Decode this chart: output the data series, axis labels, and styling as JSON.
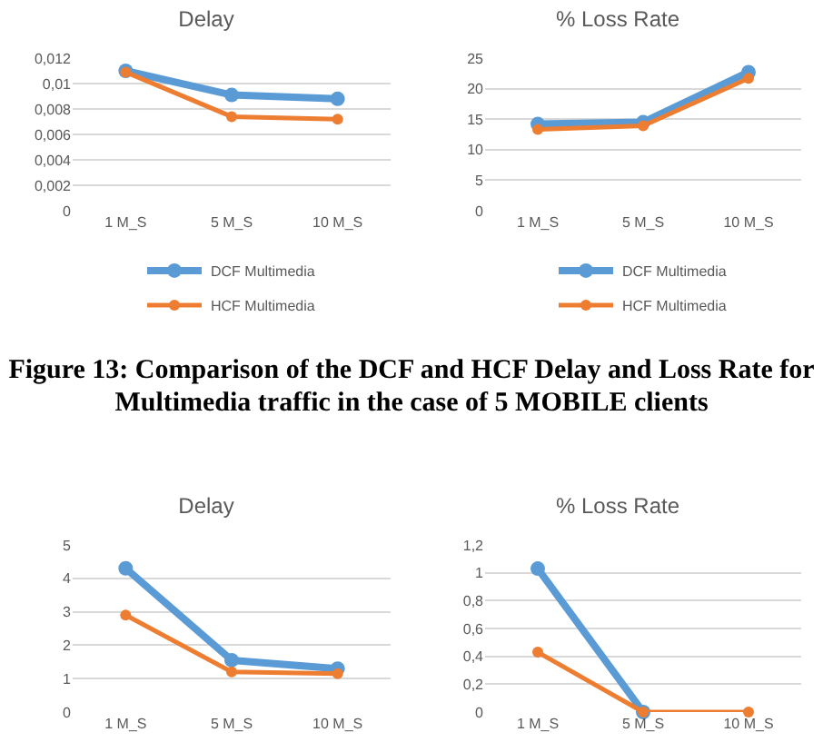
{
  "chart_data": [
    {
      "type": "line",
      "title": "Delay",
      "categories": [
        "1 M_S",
        "5 M_S",
        "10 M_S"
      ],
      "series": [
        {
          "name": "DCF Multimedia",
          "color": "#5b9bd5",
          "values": [
            0.011,
            0.0091,
            0.0088
          ]
        },
        {
          "name": "HCF Multimedia",
          "color": "#ed7d31",
          "values": [
            0.0109,
            0.0074,
            0.0072
          ]
        }
      ],
      "ylim": [
        0,
        0.012
      ],
      "yticks": [
        0,
        {
          "value": 0.002,
          "label": "0,002"
        },
        {
          "value": 0.004,
          "label": "0,004"
        },
        {
          "value": 0.006,
          "label": "0,006"
        },
        {
          "value": 0.008,
          "label": "0,008"
        },
        {
          "value": 0.01,
          "label": "0,01"
        },
        {
          "value": 0.012,
          "label": "0,012"
        }
      ],
      "grid": "y",
      "legend": "bottom",
      "marker": "circle",
      "annotations": [
        "Figure 13: Comparison of the DCF and HCF Delay and Loss Rate for Multimedia traffic in the case of 5 MOBILE clients"
      ]
    },
    {
      "type": "line",
      "title": "% Loss Rate",
      "categories": [
        "1 M_S",
        "5 M_S",
        "10 M_S"
      ],
      "series": [
        {
          "name": "DCF Multimedia",
          "color": "#5b9bd5",
          "values": [
            14.2,
            14.5,
            22.7
          ]
        },
        {
          "name": "HCF Multimedia",
          "color": "#ed7d31",
          "values": [
            13.3,
            13.9,
            21.7
          ]
        }
      ],
      "ylim": [
        0,
        25
      ],
      "yticks": [
        0,
        5,
        10,
        15,
        20,
        25
      ],
      "grid": "y",
      "legend": "bottom",
      "marker": "circle"
    },
    {
      "type": "line",
      "title": "Delay",
      "categories": [
        "1 M_S",
        "5 M_S",
        "10 M_S"
      ],
      "series": [
        {
          "color": "#5b9bd5",
          "values": [
            4.3,
            1.55,
            1.3
          ]
        },
        {
          "color": "#ed7d31",
          "values": [
            2.9,
            1.2,
            1.15
          ]
        }
      ],
      "ylim": [
        0,
        5
      ],
      "yticks": [
        0,
        1,
        2,
        3,
        4,
        5
      ],
      "grid": "y",
      "marker": "circle"
    },
    {
      "type": "line",
      "title": "% Loss Rate",
      "categories": [
        "1 M_S",
        "5 M_S",
        "10 M_S"
      ],
      "series": [
        {
          "color": "#5b9bd5",
          "values": [
            1.03,
            0,
            null
          ]
        },
        {
          "color": "#ed7d31",
          "values": [
            0.43,
            0,
            0
          ]
        }
      ],
      "ylim": [
        0,
        1.2
      ],
      "yticks": [
        0,
        {
          "value": 0.2,
          "label": "0,2"
        },
        {
          "value": 0.4,
          "label": "0,4"
        },
        {
          "value": 0.6,
          "label": "0,6"
        },
        {
          "value": 0.8,
          "label": "0,8"
        },
        {
          "value": 1,
          "label": "1"
        },
        {
          "value": 1.2,
          "label": "1,2"
        }
      ],
      "grid": "y",
      "marker": "circle"
    }
  ]
}
